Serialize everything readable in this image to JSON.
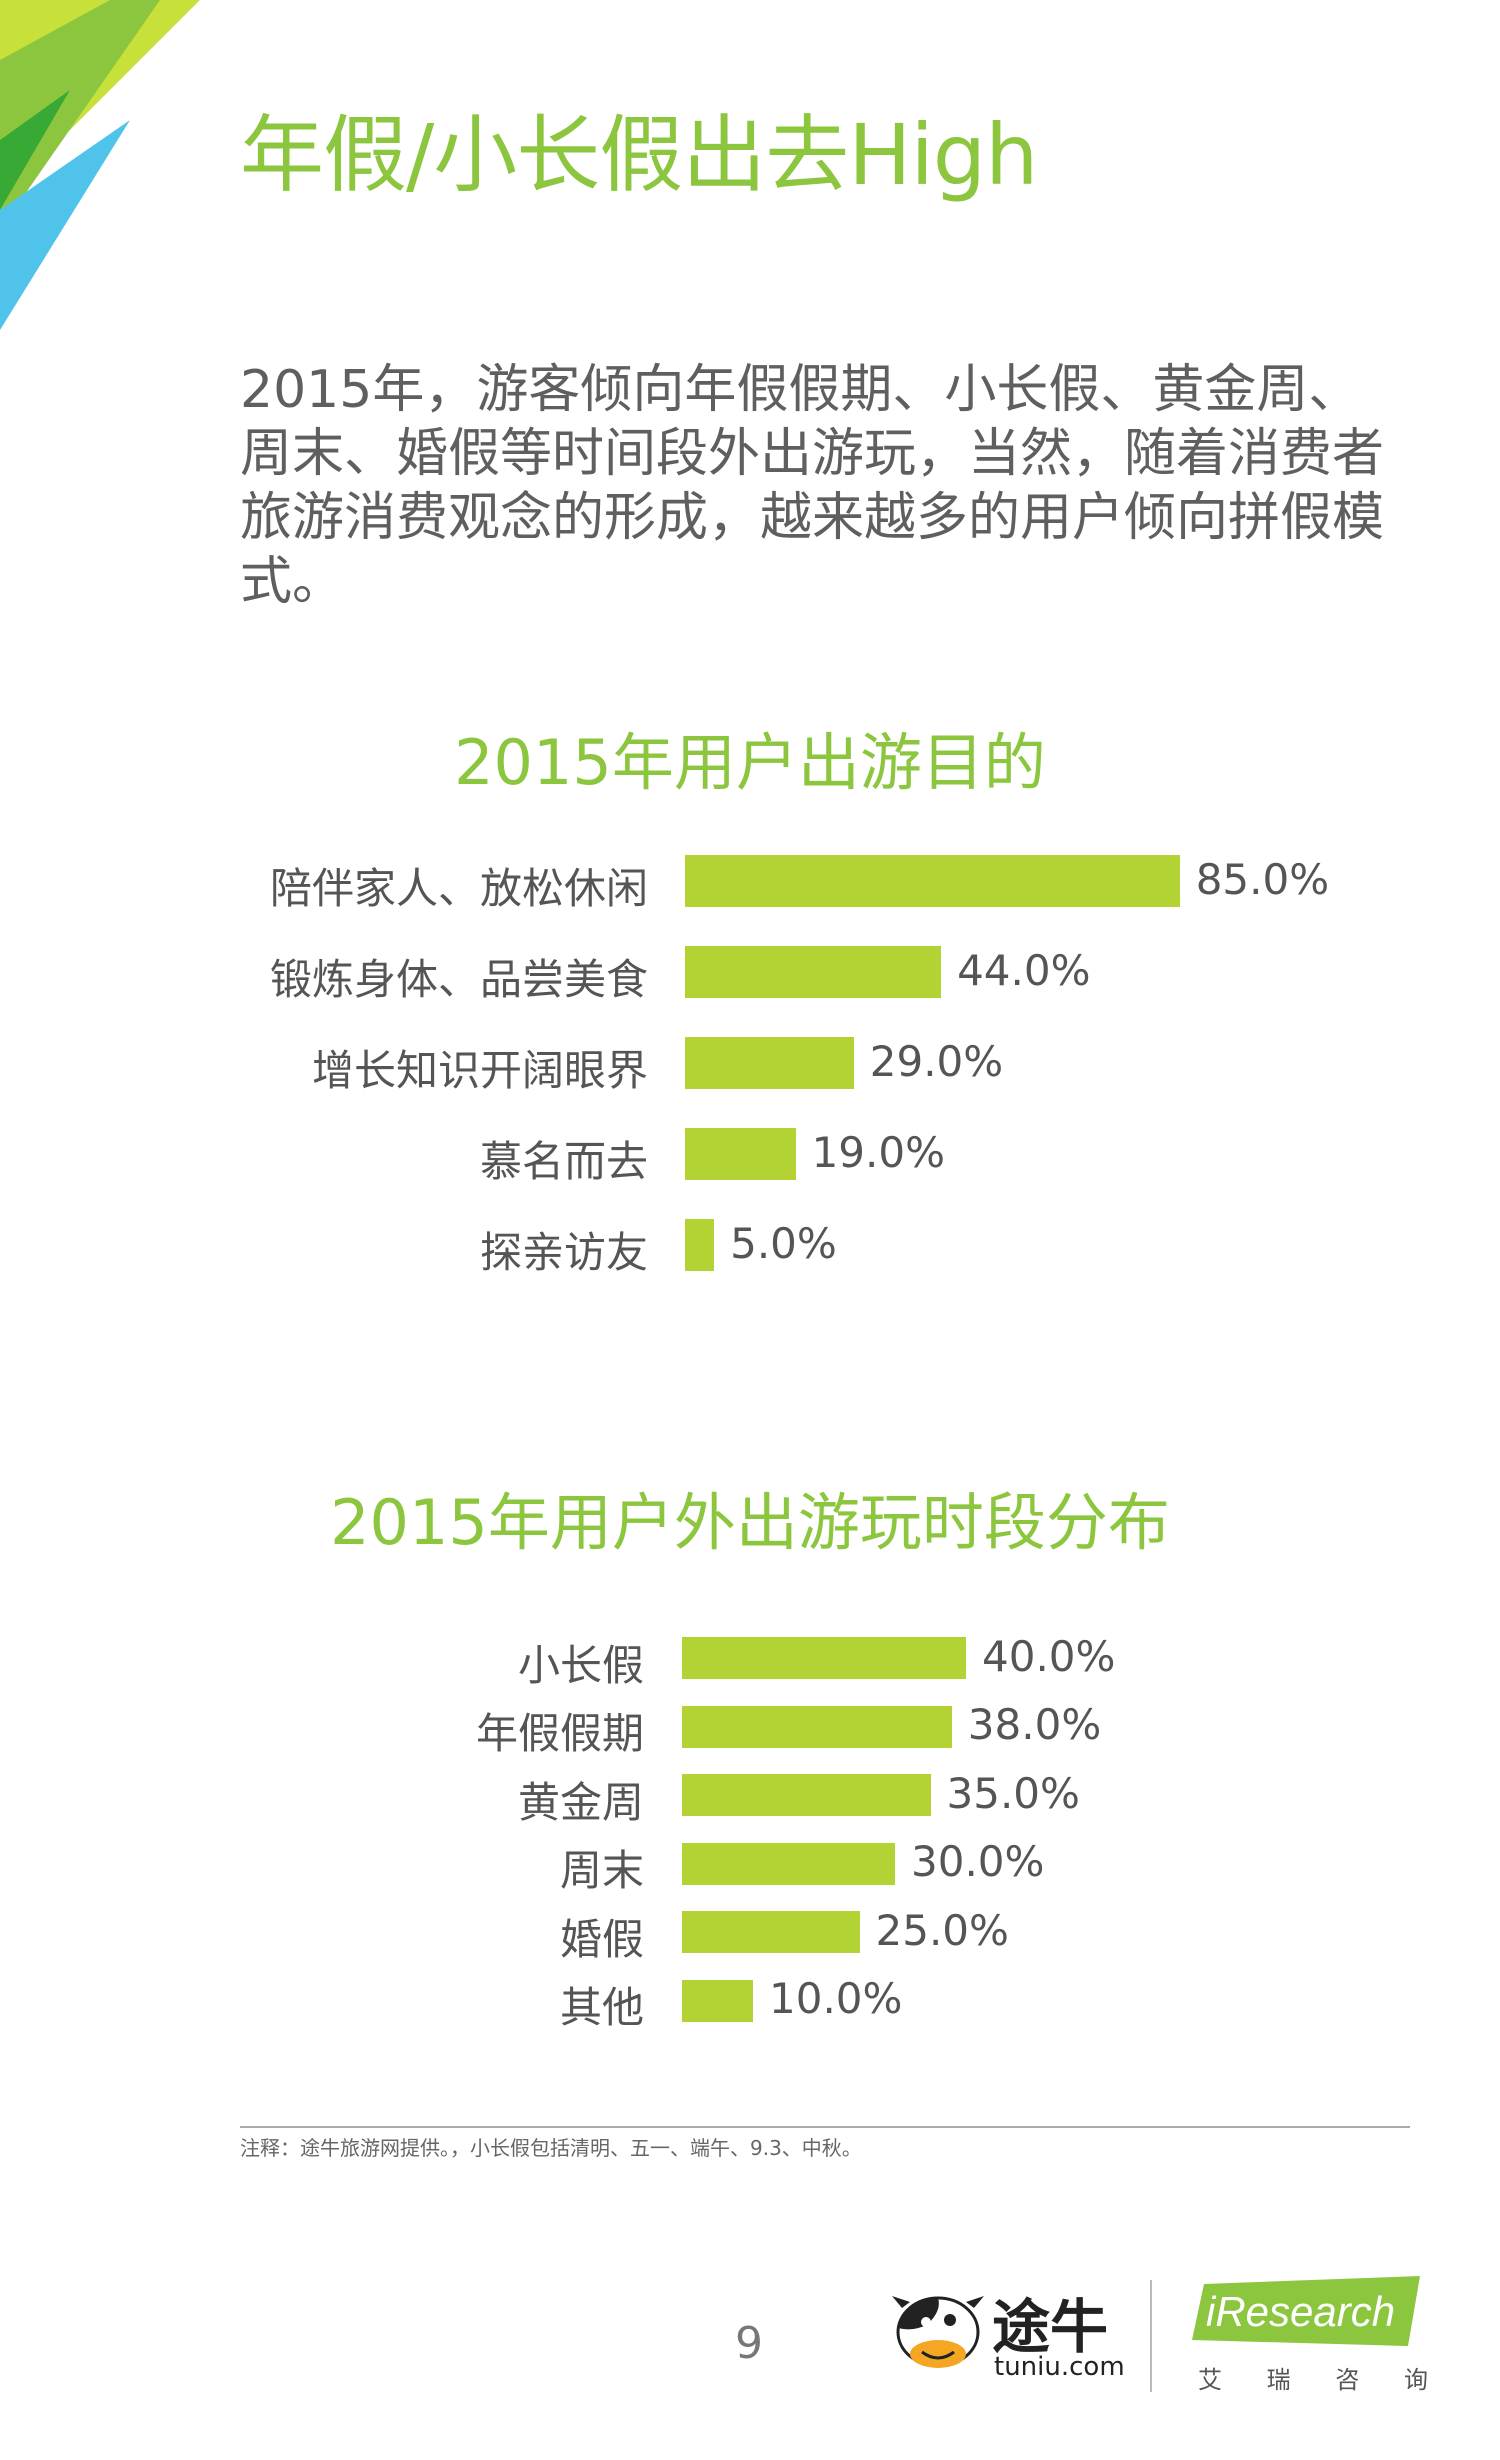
{
  "page": {
    "title": "年假/小长假出去High",
    "intro": "2015年，游客倾向年假假期、小长假、黄金周、周末、婚假等时间段外出游玩，当然，随着消费者旅游消费观念的形成，越来越多的用户倾向拼假模式。",
    "note": "注释：途牛旅游网提供。，小长假包括清明、五一、端午、9.3、中秋。",
    "page_number": "9",
    "accent_color": "#8cc63f",
    "bar_color": "#b3d335"
  },
  "logos": {
    "tuniu_cn": "途牛",
    "tuniu_en": "tuniu.com",
    "iresearch_en": "iResearch",
    "iresearch_cn": [
      "艾",
      "瑞",
      "咨",
      "询"
    ]
  },
  "chart_data": [
    {
      "type": "bar",
      "orientation": "horizontal",
      "title": "2015年用户出游目的",
      "categories": [
        "陪伴家人、放松休闲",
        "锻炼身体、品尝美食",
        "增长知识开阔眼界",
        "慕名而去",
        "探亲访友"
      ],
      "values": [
        85.0,
        44.0,
        29.0,
        19.0,
        5.0
      ],
      "value_labels": [
        "85.0%",
        "44.0%",
        "29.0%",
        "19.0%",
        "5.0%"
      ],
      "unit": "%",
      "xlim": [
        0,
        100
      ]
    },
    {
      "type": "bar",
      "orientation": "horizontal",
      "title": "2015年用户外出游玩时段分布",
      "categories": [
        "小长假",
        "年假假期",
        "黄金周",
        "周末",
        "婚假",
        "其他"
      ],
      "values": [
        40.0,
        38.0,
        35.0,
        30.0,
        25.0,
        10.0
      ],
      "value_labels": [
        "40.0%",
        "38.0%",
        "35.0%",
        "30.0%",
        "25.0%",
        "10.0%"
      ],
      "unit": "%",
      "xlim": [
        0,
        100
      ]
    }
  ]
}
